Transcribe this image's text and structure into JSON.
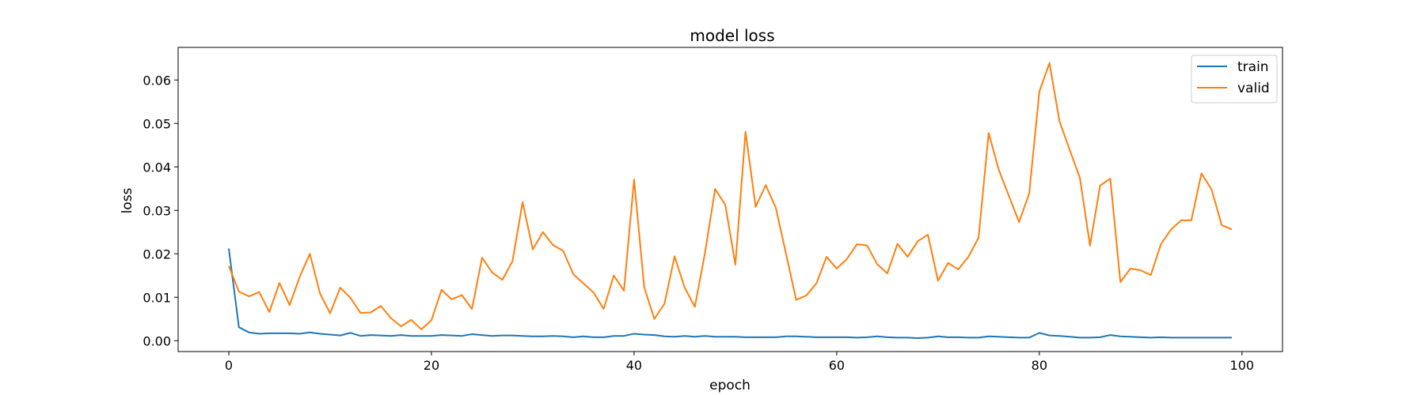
{
  "chart_data": {
    "type": "line",
    "title": "model loss",
    "xlabel": "epoch",
    "ylabel": "loss",
    "xlim": [
      -5,
      104
    ],
    "ylim": [
      -0.0025,
      0.0675
    ],
    "xticks": [
      0,
      20,
      40,
      60,
      80,
      100
    ],
    "xtick_labels": [
      "0",
      "20",
      "40",
      "60",
      "80",
      "100"
    ],
    "yticks": [
      0.0,
      0.01,
      0.02,
      0.03,
      0.04,
      0.05,
      0.06
    ],
    "ytick_labels": [
      "0.00",
      "0.01",
      "0.02",
      "0.03",
      "0.04",
      "0.05",
      "0.06"
    ],
    "grid": false,
    "legend_position": "upper right",
    "series": [
      {
        "name": "train",
        "color": "#1f77b4",
        "values": [
          0.0212,
          0.0031,
          0.0019,
          0.0016,
          0.0017,
          0.0017,
          0.0017,
          0.0016,
          0.0019,
          0.0016,
          0.0014,
          0.0012,
          0.0018,
          0.0011,
          0.0013,
          0.0012,
          0.0011,
          0.0013,
          0.0011,
          0.0011,
          0.0011,
          0.0013,
          0.0012,
          0.0011,
          0.0015,
          0.0013,
          0.0011,
          0.0012,
          0.0012,
          0.0011,
          0.001,
          0.001,
          0.0011,
          0.001,
          0.0008,
          0.001,
          0.0008,
          0.0008,
          0.0011,
          0.0011,
          0.0016,
          0.0014,
          0.0013,
          0.001,
          0.0009,
          0.0011,
          0.0009,
          0.0011,
          0.0009,
          0.0009,
          0.0009,
          0.0008,
          0.0008,
          0.0008,
          0.0008,
          0.001,
          0.001,
          0.0009,
          0.0008,
          0.0008,
          0.0008,
          0.0008,
          0.0007,
          0.0008,
          0.001,
          0.0008,
          0.0007,
          0.0007,
          0.0006,
          0.0007,
          0.001,
          0.0008,
          0.0008,
          0.0007,
          0.0007,
          0.001,
          0.0009,
          0.0008,
          0.0007,
          0.0007,
          0.0018,
          0.0012,
          0.0011,
          0.0009,
          0.0007,
          0.0007,
          0.0008,
          0.0013,
          0.001,
          0.0009,
          0.0008,
          0.0007,
          0.0008,
          0.0007,
          0.0007,
          0.0007,
          0.0007,
          0.0007,
          0.0007,
          0.0007
        ]
      },
      {
        "name": "valid",
        "color": "#ff7f0e",
        "values": [
          0.0172,
          0.0113,
          0.0102,
          0.0112,
          0.0066,
          0.0133,
          0.0082,
          0.0147,
          0.02,
          0.0109,
          0.0063,
          0.0122,
          0.0099,
          0.0064,
          0.0065,
          0.008,
          0.0052,
          0.0033,
          0.0048,
          0.0026,
          0.0047,
          0.0117,
          0.0095,
          0.0105,
          0.0073,
          0.0191,
          0.0157,
          0.014,
          0.0183,
          0.0319,
          0.021,
          0.025,
          0.022,
          0.0207,
          0.0153,
          0.0132,
          0.0111,
          0.0073,
          0.015,
          0.0115,
          0.0371,
          0.0123,
          0.005,
          0.0085,
          0.0194,
          0.0122,
          0.0078,
          0.0202,
          0.0349,
          0.0313,
          0.0175,
          0.0481,
          0.0308,
          0.0358,
          0.0305,
          0.02,
          0.0094,
          0.0104,
          0.0132,
          0.0193,
          0.0166,
          0.0188,
          0.0222,
          0.0219,
          0.0176,
          0.0155,
          0.0223,
          0.0193,
          0.0229,
          0.0244,
          0.0138,
          0.0179,
          0.0164,
          0.0193,
          0.0237,
          0.0478,
          0.0393,
          0.0333,
          0.0273,
          0.0339,
          0.0573,
          0.0639,
          0.0504,
          0.0439,
          0.0375,
          0.0219,
          0.0357,
          0.0373,
          0.0135,
          0.0166,
          0.0162,
          0.0151,
          0.0222,
          0.0256,
          0.0277,
          0.0277,
          0.0385,
          0.0348,
          0.0266,
          0.0256
        ]
      }
    ]
  }
}
